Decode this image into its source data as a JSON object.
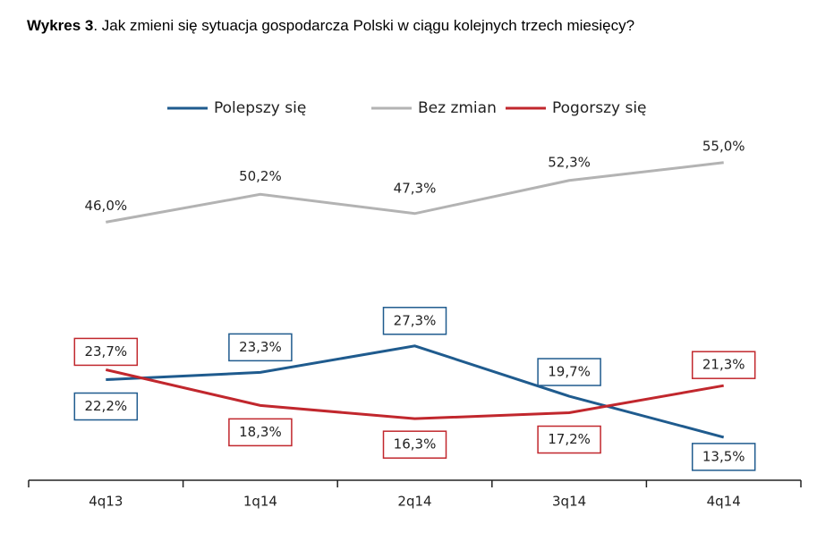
{
  "chart_data": {
    "type": "line",
    "title_bold": "Wykres 3",
    "title": ". Jak zmieni się sytuacja gospodarcza Polski  w ciągu kolejnych trzech miesięcy?",
    "categories": [
      "4q13",
      "1q14",
      "2q14",
      "3q14",
      "4q14"
    ],
    "ylim": [
      7,
      62
    ],
    "series": [
      {
        "name": "Polepszy się",
        "color": "#1f5b8e",
        "values": [
          22.2,
          23.3,
          27.3,
          19.7,
          13.5
        ],
        "value_labels": [
          "22,2%",
          "23,3%",
          "27,3%",
          "19,7%",
          "13,5%"
        ]
      },
      {
        "name": "Bez zmian",
        "color": "#b3b3b3",
        "values": [
          46.0,
          50.2,
          47.3,
          52.3,
          55.0
        ],
        "value_labels": [
          "46,0%",
          "50,2%",
          "47,3%",
          "52,3%",
          "55,0%"
        ]
      },
      {
        "name": "Pogorszy się",
        "color": "#c1272d",
        "values": [
          23.7,
          18.3,
          16.3,
          17.2,
          21.3
        ],
        "value_labels": [
          "23,7%",
          "18,3%",
          "16,3%",
          "17,2%",
          "21,3%"
        ]
      }
    ],
    "legend": "top"
  }
}
